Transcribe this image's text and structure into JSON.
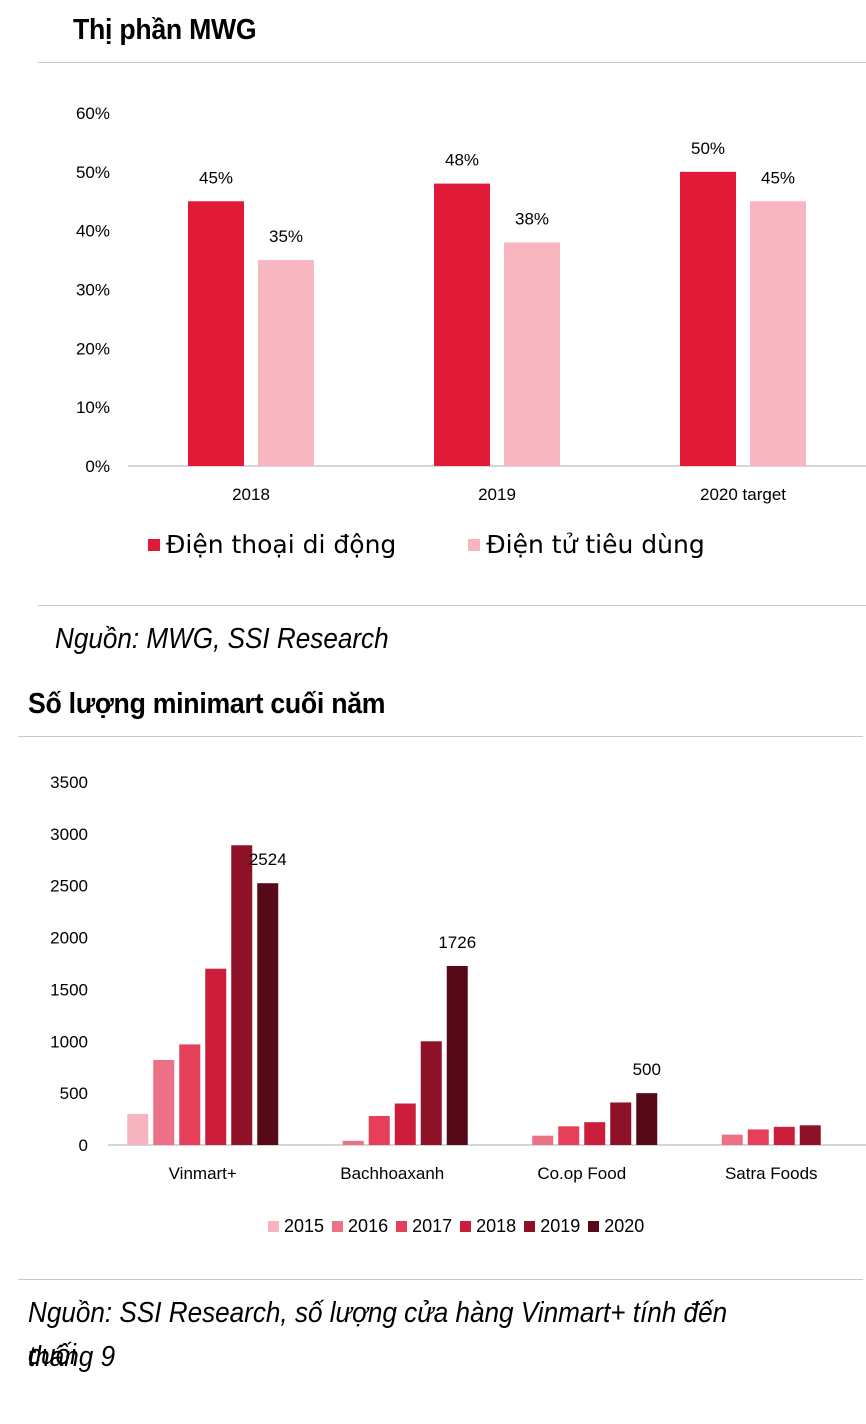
{
  "colors": {
    "mobile": "#e11b37",
    "electronics": "#f7b6c0",
    "y2015": "#f5b4c0",
    "y2016": "#ec7186",
    "y2017": "#e53f5a",
    "y2018": "#cc1e3b",
    "y2019": "#8f1128",
    "y2020": "#560a17"
  },
  "chart1": {
    "title": "Thị phần MWG",
    "source": "Nguồn: MWG, SSI Research"
  },
  "chart2": {
    "title": "Số lượng minimart cuối năm",
    "source_line1": "Nguồn: SSI Research, số lượng cửa hàng Vinmart+ tính đến cuối",
    "source_line2": "tháng 9"
  },
  "chart_data": [
    {
      "type": "bar",
      "title": "Thị phần MWG",
      "categories": [
        "2018",
        "2019",
        "2020 target"
      ],
      "series": [
        {
          "name": "Điện thoại di động",
          "values": [
            45,
            48,
            50
          ],
          "labels": [
            "45%",
            "48%",
            "50%"
          ]
        },
        {
          "name": "Điện tử tiêu dùng",
          "values": [
            35,
            38,
            45
          ],
          "labels": [
            "35%",
            "38%",
            "45%"
          ]
        }
      ],
      "yticks": [
        "0%",
        "10%",
        "20%",
        "30%",
        "40%",
        "50%",
        "60%"
      ],
      "ylim": [
        0,
        60
      ],
      "legend": "bottom",
      "grid": false
    },
    {
      "type": "bar",
      "title": "Số lượng minimart cuối năm",
      "categories": [
        "Vinmart+",
        "Bachhoaxanh",
        "Co.op Food",
        "Satra Foods"
      ],
      "series": [
        {
          "name": "2015",
          "values": [
            300,
            0,
            0,
            0
          ]
        },
        {
          "name": "2016",
          "values": [
            820,
            40,
            90,
            100
          ]
        },
        {
          "name": "2017",
          "values": [
            970,
            280,
            180,
            150
          ]
        },
        {
          "name": "2018",
          "values": [
            1700,
            400,
            220,
            175
          ]
        },
        {
          "name": "2019",
          "values": [
            2890,
            1000,
            410,
            190
          ]
        },
        {
          "name": "2020",
          "values": [
            2524,
            1726,
            500,
            0
          ]
        }
      ],
      "data_labels": [
        {
          "category": "Vinmart+",
          "series": "2020",
          "text": "2524"
        },
        {
          "category": "Bachhoaxanh",
          "series": "2020",
          "text": "1726"
        },
        {
          "category": "Co.op Food",
          "series": "2020",
          "text": "500"
        }
      ],
      "yticks": [
        "0",
        "500",
        "1000",
        "1500",
        "2000",
        "2500",
        "3000",
        "3500"
      ],
      "ylim": [
        0,
        3500
      ],
      "legend": "bottom",
      "grid": false
    }
  ]
}
